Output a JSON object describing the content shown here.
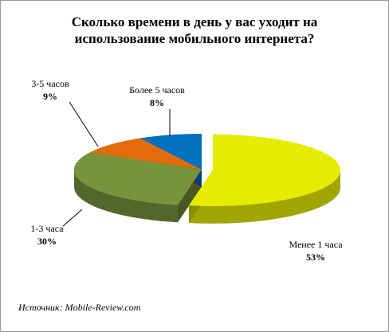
{
  "chart_data": {
    "type": "pie",
    "title": "Сколько времени в день у вас уходит на использование мобильного интернета?",
    "categories": [
      "Менее 1 часа",
      "1-3 часа",
      "3-5 часов",
      "Более 5 часов"
    ],
    "values": [
      53,
      30,
      9,
      8
    ],
    "value_labels": [
      "53%",
      "30%",
      "9%",
      "8%"
    ],
    "colors": [
      "#e6ec00",
      "#77933c",
      "#e36c0a",
      "#0070c0"
    ],
    "source": "Источник: Mobile-Review.com"
  }
}
